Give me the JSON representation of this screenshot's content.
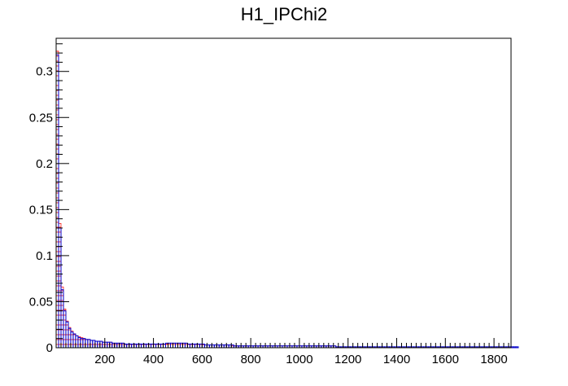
{
  "chart_data": {
    "type": "bar",
    "title": "H1_IPChi2",
    "xlabel": "",
    "ylabel": "",
    "xlim": [
      0,
      1870
    ],
    "ylim": [
      0,
      0.336
    ],
    "bin_width": 10,
    "x_ticks": [
      200,
      400,
      600,
      800,
      1000,
      1200,
      1400,
      1600,
      1800
    ],
    "x_tick_labels": [
      "200",
      "400",
      "600",
      "800",
      "1000",
      "1200",
      "1400",
      "1600",
      "1800"
    ],
    "y_ticks": [
      0,
      0.05,
      0.1,
      0.15,
      0.2,
      0.25,
      0.3
    ],
    "y_tick_labels": [
      "0",
      "0.05",
      "0.1",
      "0.15",
      "0.2",
      "0.25",
      "0.3"
    ],
    "grid": false,
    "series": [
      {
        "color": "#ff0000",
        "fill": "hatched",
        "values": [
          0.322,
          0.135,
          0.066,
          0.042,
          0.029,
          0.022,
          0.018,
          0.015,
          0.013,
          0.012,
          0.011,
          0.01,
          0.009,
          0.009,
          0.008,
          0.008,
          0.007,
          0.007,
          0.007,
          0.006,
          0.006,
          0.006,
          0.006,
          0.005,
          0.005,
          0.005,
          0.005,
          0.005,
          0.004,
          0.004,
          0.004,
          0.004,
          0.004,
          0.004,
          0.004,
          0.004,
          0.004,
          0.004,
          0.004,
          0.004,
          0.004,
          0.004,
          0.004,
          0.004,
          0.004,
          0.004,
          0.005,
          0.005,
          0.005,
          0.005,
          0.005,
          0.005,
          0.005,
          0.005,
          0.004,
          0.004,
          0.004,
          0.004,
          0.004,
          0.004,
          0.003,
          0.003,
          0.003,
          0.003,
          0.003,
          0.003,
          0.003,
          0.003,
          0.003,
          0.003,
          0.003,
          0.003,
          0.002,
          0.002,
          0.002,
          0.002,
          0.002,
          0.002,
          0.002,
          0.002,
          0.002,
          0.002,
          0.002,
          0.002,
          0.002,
          0.002,
          0.002,
          0.002,
          0.002,
          0.002,
          0.002,
          0.002,
          0.002,
          0.002,
          0.002,
          0.002,
          0.002,
          0.002,
          0.002,
          0.002,
          0.002,
          0.002,
          0.002,
          0.002,
          0.002,
          0.002,
          0.002,
          0.002,
          0.002,
          0.002,
          0.002,
          0.002,
          0.002,
          0.002,
          0.002,
          0.001,
          0.001,
          0.001,
          0.001,
          0.001,
          0.001,
          0.001,
          0.001,
          0.001,
          0.001,
          0.001,
          0.001,
          0.001,
          0.001,
          0.001,
          0.001,
          0.001,
          0.001,
          0.001,
          0.001,
          0.001,
          0.001,
          0.001,
          0.001,
          0.001,
          0.001,
          0.001,
          0.001,
          0.001,
          0.001,
          0.001,
          0.001,
          0.001,
          0.001,
          0.001,
          0.001,
          0.001,
          0.001,
          0.001,
          0.001,
          0.001,
          0.001,
          0.001,
          0.001,
          0.001,
          0.001,
          0.001,
          0.001,
          0.001,
          0.001,
          0.001,
          0.001,
          0.001,
          0.001,
          0.001,
          0.001,
          0.001,
          0.001,
          0.001,
          0.001,
          0.001,
          0.001,
          0.001,
          0.001,
          0.001,
          0.001,
          0.001,
          0.001,
          0.001,
          0.001,
          0.001,
          0.001,
          0.001,
          0.001
        ]
      },
      {
        "color": "#0000cc",
        "fill": "none",
        "values": [
          0.318,
          0.13,
          0.063,
          0.04,
          0.028,
          0.021,
          0.017,
          0.015,
          0.013,
          0.011,
          0.01,
          0.01,
          0.009,
          0.009,
          0.008,
          0.008,
          0.007,
          0.007,
          0.007,
          0.006,
          0.006,
          0.006,
          0.006,
          0.005,
          0.005,
          0.005,
          0.005,
          0.005,
          0.004,
          0.004,
          0.004,
          0.004,
          0.004,
          0.004,
          0.004,
          0.004,
          0.004,
          0.004,
          0.004,
          0.004,
          0.004,
          0.004,
          0.004,
          0.004,
          0.004,
          0.005,
          0.005,
          0.005,
          0.005,
          0.005,
          0.005,
          0.005,
          0.005,
          0.005,
          0.004,
          0.004,
          0.004,
          0.004,
          0.004,
          0.004,
          0.004,
          0.003,
          0.003,
          0.003,
          0.003,
          0.003,
          0.003,
          0.003,
          0.003,
          0.003,
          0.003,
          0.003,
          0.003,
          0.002,
          0.002,
          0.002,
          0.002,
          0.002,
          0.002,
          0.002,
          0.002,
          0.002,
          0.002,
          0.002,
          0.002,
          0.002,
          0.002,
          0.002,
          0.002,
          0.002,
          0.002,
          0.002,
          0.002,
          0.002,
          0.002,
          0.002,
          0.002,
          0.002,
          0.002,
          0.002,
          0.002,
          0.002,
          0.002,
          0.002,
          0.002,
          0.002,
          0.002,
          0.002,
          0.002,
          0.002,
          0.002,
          0.002,
          0.002,
          0.002,
          0.002,
          0.001,
          0.001,
          0.001,
          0.001,
          0.001,
          0.001,
          0.001,
          0.001,
          0.001,
          0.001,
          0.001,
          0.001,
          0.001,
          0.001,
          0.001,
          0.001,
          0.001,
          0.001,
          0.001,
          0.001,
          0.001,
          0.001,
          0.001,
          0.001,
          0.001,
          0.001,
          0.001,
          0.001,
          0.001,
          0.001,
          0.001,
          0.001,
          0.001,
          0.001,
          0.001,
          0.001,
          0.001,
          0.001,
          0.001,
          0.001,
          0.001,
          0.001,
          0.001,
          0.001,
          0.001,
          0.001,
          0.001,
          0.001,
          0.001,
          0.001,
          0.001,
          0.001,
          0.001,
          0.001,
          0.001,
          0.001,
          0.001,
          0.001,
          0.001,
          0.001,
          0.001,
          0.001,
          0.001,
          0.001,
          0.001,
          0.001,
          0.001,
          0.001,
          0.001,
          0.001,
          0.001,
          0.001,
          0.001,
          0.001,
          0.001
        ]
      }
    ]
  }
}
